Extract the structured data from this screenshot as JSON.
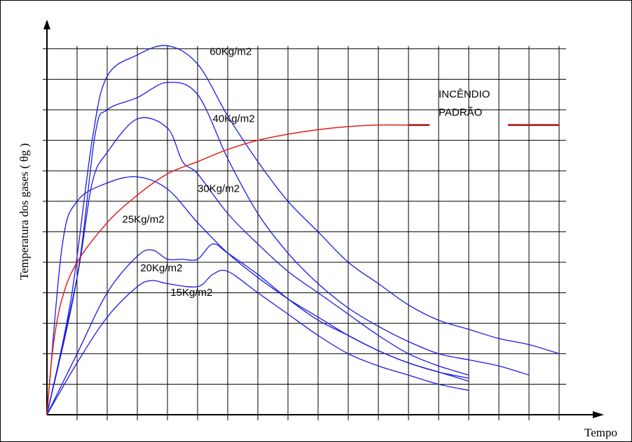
{
  "chart_data": {
    "type": "line",
    "xlabel": "Tempo",
    "ylabel": "Temperatura dos gases ( θg )",
    "grid": true,
    "grid_divisions": {
      "x": 17,
      "y": 12
    },
    "series": [
      {
        "name": "60Kg/m2",
        "color": "#1a1ae6",
        "points": [
          [
            0,
            0
          ],
          [
            0.8,
            3.8
          ],
          [
            1.5,
            9.0
          ],
          [
            2,
            11.1
          ],
          [
            3,
            11.8
          ],
          [
            4,
            12.1
          ],
          [
            5,
            11.5
          ],
          [
            6,
            9.8
          ],
          [
            7,
            8.3
          ],
          [
            8,
            7.0
          ],
          [
            9,
            6.0
          ],
          [
            10,
            5.0
          ],
          [
            11,
            4.3
          ],
          [
            12,
            3.6
          ],
          [
            13,
            3.1
          ],
          [
            14,
            2.8
          ],
          [
            15,
            2.5
          ],
          [
            16,
            2.3
          ],
          [
            17,
            2.0
          ]
        ]
      },
      {
        "name": "40Kg/m2",
        "color": "#1a1ae6",
        "points": [
          [
            0,
            0
          ],
          [
            1,
            4.5
          ],
          [
            1.6,
            9.2
          ],
          [
            2,
            10.0
          ],
          [
            3,
            10.4
          ],
          [
            4,
            10.9
          ],
          [
            5,
            10.5
          ],
          [
            6,
            8.4
          ],
          [
            7,
            6.6
          ],
          [
            8,
            5.3
          ],
          [
            9,
            4.3
          ],
          [
            10,
            3.5
          ],
          [
            11,
            2.9
          ],
          [
            12,
            2.4
          ],
          [
            13,
            2.0
          ],
          [
            14,
            1.8
          ],
          [
            15,
            1.6
          ],
          [
            16,
            1.3
          ]
        ]
      },
      {
        "name": "30Kg/m2",
        "color": "#1a1ae6",
        "points": [
          [
            0,
            0
          ],
          [
            1,
            4.5
          ],
          [
            1.5,
            7.6
          ],
          [
            2,
            8.6
          ],
          [
            3,
            9.7
          ],
          [
            4,
            9.4
          ],
          [
            4.5,
            8.3
          ],
          [
            5,
            7.9
          ],
          [
            6,
            6.6
          ],
          [
            7,
            5.6
          ],
          [
            8,
            4.7
          ],
          [
            9,
            4.0
          ],
          [
            10,
            3.3
          ],
          [
            11,
            2.6
          ],
          [
            12,
            2.0
          ],
          [
            13,
            1.6
          ],
          [
            14,
            1.3
          ]
        ]
      },
      {
        "name": "25Kg/m2",
        "color": "#1a1ae6",
        "points": [
          [
            0,
            0
          ],
          [
            0.5,
            5.5
          ],
          [
            1,
            7.0
          ],
          [
            2,
            7.6
          ],
          [
            3,
            7.8
          ],
          [
            4,
            7.4
          ],
          [
            5,
            6.3
          ],
          [
            6,
            5.3
          ],
          [
            7,
            4.5
          ],
          [
            8,
            3.8
          ],
          [
            9,
            3.2
          ],
          [
            10,
            2.6
          ],
          [
            11,
            2.1
          ],
          [
            12,
            1.7
          ],
          [
            13,
            1.4
          ],
          [
            14,
            1.2
          ]
        ]
      },
      {
        "name": "20Kg/m2",
        "color": "#1a1ae6",
        "points": [
          [
            0,
            0
          ],
          [
            1,
            2.0
          ],
          [
            2,
            4.0
          ],
          [
            3,
            5.2
          ],
          [
            3.5,
            5.4
          ],
          [
            4,
            5.1
          ],
          [
            4.5,
            5.1
          ],
          [
            5,
            5.1
          ],
          [
            5.5,
            5.6
          ],
          [
            6,
            5.3
          ],
          [
            7,
            4.6
          ],
          [
            8,
            3.8
          ],
          [
            9,
            3.1
          ],
          [
            10,
            2.6
          ],
          [
            11,
            2.1
          ],
          [
            12,
            1.7
          ],
          [
            13,
            1.4
          ],
          [
            14,
            1.1
          ]
        ]
      },
      {
        "name": "15Kg/m2",
        "color": "#1a1ae6",
        "points": [
          [
            0,
            0
          ],
          [
            1,
            1.7
          ],
          [
            2,
            3.2
          ],
          [
            3,
            4.2
          ],
          [
            3.5,
            4.4
          ],
          [
            4,
            4.3
          ],
          [
            5,
            4.2
          ],
          [
            5.5,
            4.6
          ],
          [
            6,
            4.7
          ],
          [
            7,
            4.0
          ],
          [
            8,
            3.3
          ],
          [
            9,
            2.6
          ],
          [
            10,
            2.0
          ],
          [
            11,
            1.6
          ],
          [
            12,
            1.3
          ],
          [
            13,
            1.0
          ],
          [
            14,
            0.8
          ]
        ]
      },
      {
        "name": "INCÊNDIO PADRÃO",
        "color": "#e02020",
        "points": [
          [
            0,
            0
          ],
          [
            0.2,
            2.2
          ],
          [
            0.5,
            3.8
          ],
          [
            1,
            5.0
          ],
          [
            2,
            6.3
          ],
          [
            3,
            7.2
          ],
          [
            4,
            7.9
          ],
          [
            5,
            8.3
          ],
          [
            6,
            8.7
          ],
          [
            7,
            9.0
          ],
          [
            8,
            9.2
          ],
          [
            9,
            9.35
          ],
          [
            10,
            9.45
          ],
          [
            11,
            9.5
          ],
          [
            12,
            9.5
          ]
        ],
        "extension": [
          [
            12,
            9.5
          ],
          [
            12.7,
            9.5
          ]
        ],
        "extension2": [
          [
            15.3,
            9.5
          ],
          [
            17,
            9.5
          ]
        ]
      }
    ],
    "annotations": [
      {
        "text": "60Kg/m2",
        "at": [
          5.4,
          11.8
        ]
      },
      {
        "text": "40Kg/m2",
        "at": [
          5.5,
          9.6
        ]
      },
      {
        "text": "30Kg/m2",
        "at": [
          5.0,
          7.3
        ]
      },
      {
        "text": "25Kg/m2",
        "at": [
          2.5,
          6.3
        ]
      },
      {
        "text": "20Kg/m2",
        "at": [
          3.1,
          4.7
        ]
      },
      {
        "text": "15Kg/m2",
        "at": [
          4.1,
          3.9
        ]
      },
      {
        "text": "INCÊNDIO",
        "at": [
          13.0,
          10.4
        ]
      },
      {
        "text": "PADRÃO",
        "at": [
          13.0,
          9.8
        ]
      }
    ]
  }
}
